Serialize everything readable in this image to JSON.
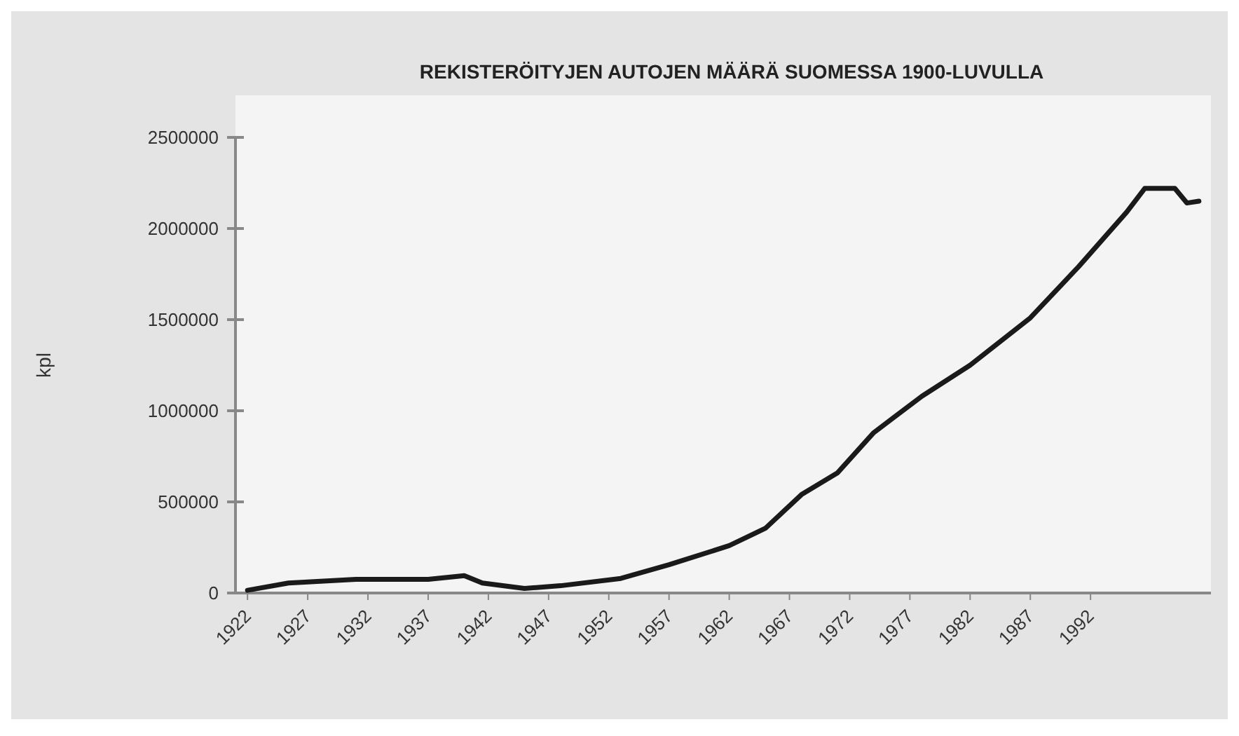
{
  "chart_data": {
    "type": "line",
    "title": "REKISTERÖITYJEN AUTOJEN MÄÄRÄ SUOMESSA 1900-LUVULLA",
    "ylabel": "kpl",
    "x": [
      1922,
      1925.4,
      1931,
      1937,
      1940,
      1941.5,
      1945,
      1948,
      1953,
      1957,
      1962,
      1965,
      1968,
      1971,
      1974,
      1978,
      1982,
      1987,
      1991,
      1995,
      1996.5,
      1999,
      2000,
      2001
    ],
    "series": [
      {
        "color": "#1a1a1a",
        "values": [
          15000,
          55000,
          75000,
          75000,
          95000,
          55000,
          25000,
          40000,
          80000,
          155000,
          260000,
          355000,
          540000,
          660000,
          880000,
          1080000,
          1250000,
          1510000,
          1790000,
          2090000,
          2220000,
          2220000,
          2140000,
          2150000
        ]
      }
    ],
    "xlim": [
      1921,
      2002
    ],
    "xticks": [
      1922,
      1927,
      1932,
      1937,
      1942,
      1947,
      1952,
      1957,
      1962,
      1967,
      1972,
      1977,
      1982,
      1987,
      1992
    ],
    "ylim": [
      0,
      2500000
    ],
    "yticks": [
      0,
      500000,
      1000000,
      1500000,
      2000000,
      2500000
    ],
    "grid": false,
    "marker": "none",
    "line_style": "solid"
  }
}
